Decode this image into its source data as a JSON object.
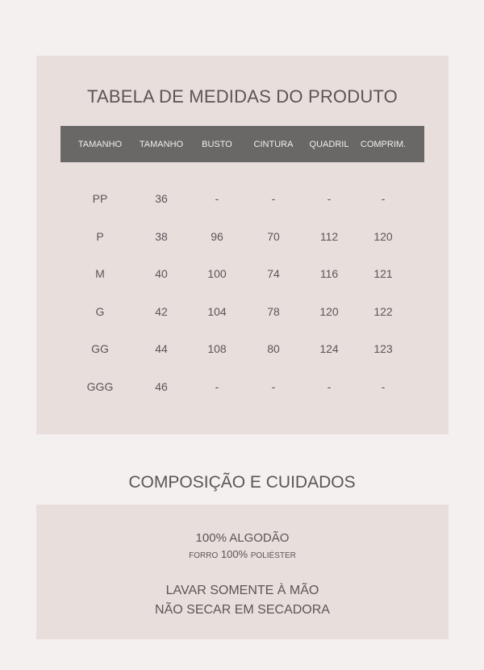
{
  "measures": {
    "title": "TABELA DE MEDIDAS DO PRODUTO",
    "columns": [
      "TAMANHO",
      "TAMANHO",
      "BUSTO",
      "CINTURA",
      "QUADRIL",
      "COMPRIM."
    ],
    "rows": [
      [
        "PP",
        "36",
        "-",
        "-",
        "-",
        "-"
      ],
      [
        "P",
        "38",
        "96",
        "70",
        "112",
        "120"
      ],
      [
        "M",
        "40",
        "100",
        "74",
        "116",
        "121"
      ],
      [
        "G",
        "42",
        "104",
        "78",
        "120",
        "122"
      ],
      [
        "GG",
        "44",
        "108",
        "80",
        "124",
        "123"
      ],
      [
        "GGG",
        "46",
        "-",
        "-",
        "-",
        "-"
      ]
    ]
  },
  "care": {
    "title": "COMPOSIÇÃO E CUIDADOS",
    "composition": "100% ALGODÃO",
    "lining_prefix": "FORRO",
    "lining_percent": "100%",
    "lining_material": "POLIÉSTER",
    "instruction_1": "LAVAR SOMENTE À MÃO",
    "instruction_2": "NÃO SECAR EM SECADORA"
  },
  "colors": {
    "background": "#f4f0f0",
    "panel": "#e8dfdd",
    "header": "#6a6767",
    "text": "#5b5556"
  }
}
